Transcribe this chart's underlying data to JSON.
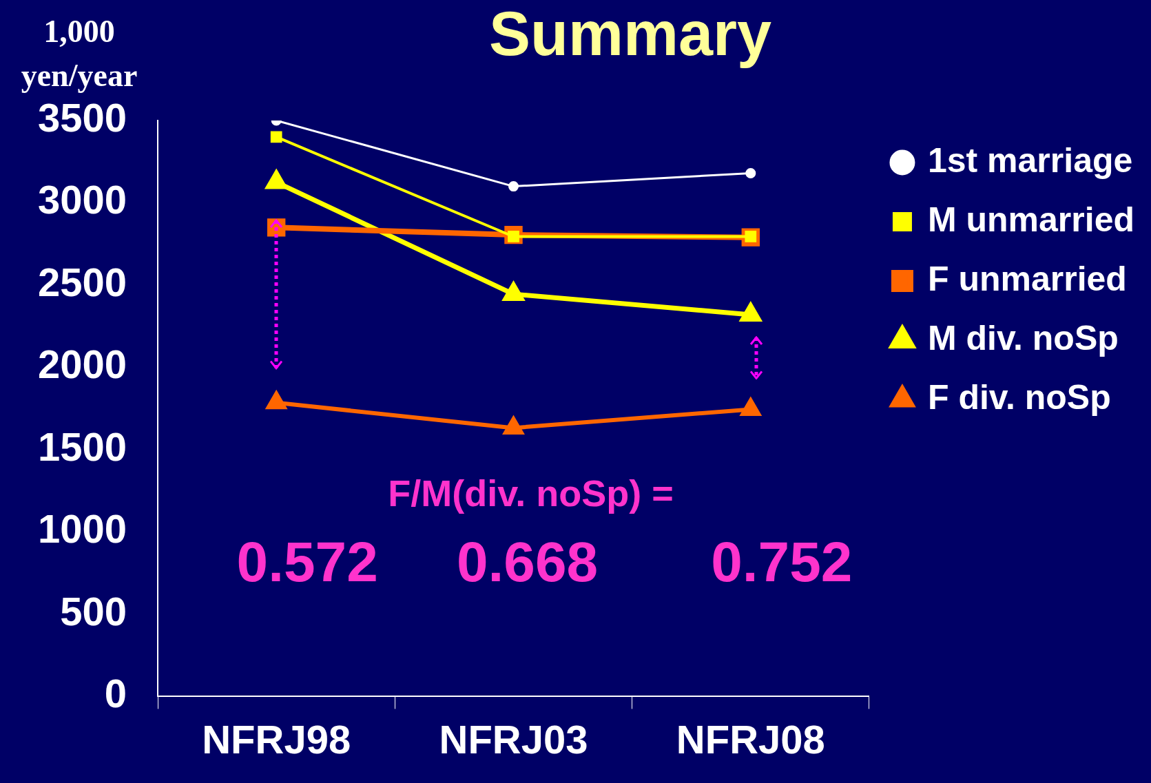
{
  "chart_data": {
    "type": "line",
    "title": "Summary",
    "ylabel": "1,000 yen/year",
    "categories": [
      "NFRJ98",
      "NFRJ03",
      "NFRJ08"
    ],
    "series": [
      {
        "name": "1st marriage",
        "color": "#ffffff",
        "marker": "circle",
        "values": [
          3500,
          3100,
          3180
        ]
      },
      {
        "name": "M unmarried",
        "color": "#ffff00",
        "marker": "square",
        "values": [
          3400,
          2795,
          2795
        ]
      },
      {
        "name": "F unmarried",
        "color": "#ff6600",
        "marker": "square",
        "values": [
          2850,
          2805,
          2790
        ]
      },
      {
        "name": "M div. noSp",
        "color": "#ffff00",
        "marker": "triangle",
        "values": [
          3125,
          2445,
          2320
        ]
      },
      {
        "name": "F div. noSp",
        "color": "#ff6600",
        "marker": "triangle",
        "values": [
          1785,
          1632,
          1745
        ]
      }
    ],
    "ylim": [
      0,
      3500
    ],
    "yticks": [
      0,
      500,
      1000,
      1500,
      2000,
      2500,
      3000,
      3500
    ],
    "grid": false,
    "legend": "top right",
    "annotations": [
      "F/M(div. noSp) =",
      "0.572",
      "0.668",
      "0.752"
    ]
  }
}
